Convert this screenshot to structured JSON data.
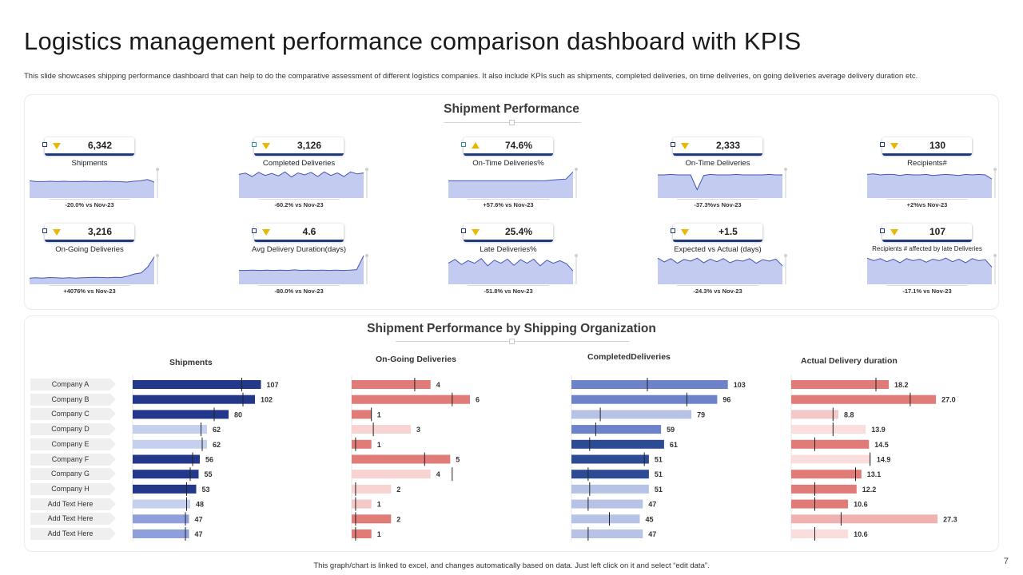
{
  "title": "Logistics management performance comparison dashboard with KPIS",
  "subtitle": "This slide showcases shipping performance dashboard that can help to do the comparative assessment of different logistics companies. It also include KPIs such as shipments, completed deliveries, on time deliveries, on going deliveries average delivery duration etc.",
  "shipment_panel": {
    "title": "Shipment Performance"
  },
  "kpis": [
    {
      "value": "6,342",
      "label": "Shipments",
      "trend": "down",
      "comparison": "-20.0% vs Nov-23",
      "spark": [
        0.55,
        0.52,
        0.52,
        0.53,
        0.52,
        0.53,
        0.52,
        0.52,
        0.53,
        0.52,
        0.52,
        0.53,
        0.52,
        0.52,
        0.5,
        0.53,
        0.55,
        0.6,
        0.5
      ]
    },
    {
      "value": "3,126",
      "label": "Completed Deliveries",
      "trend": "down",
      "comparison": "-60.2% vs Nov-23",
      "spark": [
        0.8,
        0.85,
        0.72,
        0.88,
        0.76,
        0.84,
        0.74,
        0.9,
        0.7,
        0.86,
        0.78,
        0.88,
        0.72,
        0.9,
        0.76,
        0.86,
        0.72,
        0.9,
        0.82,
        0.86
      ]
    },
    {
      "value": "74.6%",
      "label": "On-Time Deliveries%",
      "trend": "up",
      "comparison": "+57.6% vs Nov-23",
      "spark": [
        0.55,
        0.55,
        0.55,
        0.55,
        0.55,
        0.55,
        0.55,
        0.55,
        0.55,
        0.55,
        0.55,
        0.55,
        0.55,
        0.55,
        0.55,
        0.58,
        0.6,
        0.62,
        0.9
      ]
    },
    {
      "value": "2,333",
      "label": "On-Time Deliveries",
      "trend": "down",
      "comparison": "-37.3%vs Nov-23",
      "spark": [
        0.78,
        0.78,
        0.8,
        0.78,
        0.78,
        0.78,
        0.2,
        0.76,
        0.8,
        0.78,
        0.78,
        0.78,
        0.8,
        0.78,
        0.78,
        0.78,
        0.78,
        0.8,
        0.78,
        0.78
      ]
    },
    {
      "value": "130",
      "label": "Recipients#",
      "trend": "down",
      "comparison": "+2%vs Nov-23",
      "spark": [
        0.8,
        0.82,
        0.78,
        0.8,
        0.8,
        0.76,
        0.8,
        0.78,
        0.78,
        0.8,
        0.76,
        0.78,
        0.8,
        0.78,
        0.76,
        0.8,
        0.78,
        0.8,
        0.78,
        0.62
      ]
    },
    {
      "value": "3,216",
      "label": "On-Going Deliveries",
      "trend": "down",
      "comparison": "+4076% vs Nov-23",
      "spark": [
        0.12,
        0.13,
        0.12,
        0.14,
        0.13,
        0.12,
        0.13,
        0.12,
        0.13,
        0.14,
        0.15,
        0.14,
        0.13,
        0.15,
        0.14,
        0.2,
        0.28,
        0.32,
        0.55,
        0.95
      ]
    },
    {
      "value": "4.6",
      "label": "Avg Delivery Duration(days)",
      "trend": "down",
      "comparison": "-80.0% vs Nov-23",
      "spark": [
        0.42,
        0.42,
        0.43,
        0.42,
        0.43,
        0.42,
        0.43,
        0.42,
        0.44,
        0.42,
        0.43,
        0.42,
        0.43,
        0.42,
        0.43,
        0.42,
        0.43,
        0.45,
        1.0
      ]
    },
    {
      "value": "25.4%",
      "label": "Late Deliveries%",
      "trend": "down",
      "comparison": "-51.8% vs Nov-23",
      "spark": [
        0.7,
        0.85,
        0.65,
        0.8,
        0.7,
        0.88,
        0.6,
        0.82,
        0.7,
        0.86,
        0.62,
        0.84,
        0.7,
        0.86,
        0.6,
        0.82,
        0.7,
        0.8,
        0.68,
        0.4
      ]
    },
    {
      "value": "+1.5",
      "label": "Expected vs Actual (days)",
      "trend": "down",
      "comparison": "-24.3% vs Nov-23",
      "spark": [
        0.9,
        0.75,
        0.88,
        0.7,
        0.85,
        0.78,
        0.9,
        0.72,
        0.86,
        0.76,
        0.88,
        0.72,
        0.82,
        0.78,
        0.88,
        0.7,
        0.84,
        0.78,
        0.86,
        0.6
      ]
    },
    {
      "value": "107",
      "label": "Recipients # affected by late Deliveries",
      "trend": "down",
      "comparison": "-17.1% vs Nov-23",
      "spark": [
        0.9,
        0.8,
        0.88,
        0.76,
        0.86,
        0.72,
        0.88,
        0.8,
        0.86,
        0.74,
        0.86,
        0.8,
        0.9,
        0.76,
        0.86,
        0.72,
        0.88,
        0.8,
        0.84,
        0.55
      ]
    }
  ],
  "org_panel": {
    "title": "Shipment Performance by  Shipping Organization"
  },
  "companies": [
    "Company A",
    "Company B",
    "Company C",
    "Company D",
    "Company E",
    "Company F",
    "Company G",
    "Company H",
    "Add Text Here",
    "Add Text Here",
    "Add Text Here"
  ],
  "chart_data": [
    {
      "type": "bar",
      "title": "Shipments",
      "categories": [
        "Company A",
        "Company B",
        "Company C",
        "Company D",
        "Company E",
        "Company F",
        "Company G",
        "Company H",
        "Add Text Here",
        "Add Text Here",
        "Add Text Here"
      ],
      "values": [
        107,
        102,
        80,
        62,
        62,
        56,
        55,
        53,
        48,
        47,
        47
      ],
      "labels": [
        "107",
        "102",
        "80",
        "62",
        "62",
        "56",
        "55",
        "53",
        "48",
        "47",
        "47"
      ],
      "markers": [
        91,
        92,
        68,
        57,
        58,
        50,
        48,
        45,
        45,
        44,
        44
      ],
      "colors": [
        "#23388a",
        "#23388a",
        "#23388a",
        "#c5d0ef",
        "#c5d0ef",
        "#23388a",
        "#23388a",
        "#23388a",
        "#c5d0ef",
        "#8e9fdc",
        "#8e9fdc"
      ],
      "max": 110
    },
    {
      "type": "bar",
      "title": "On-Going Deliveries",
      "categories": [
        "Company A",
        "Company B",
        "Company C",
        "Company D",
        "Company E",
        "Company F",
        "Company G",
        "Company H",
        "Add Text Here",
        "Add Text Here",
        "Add Text Here"
      ],
      "values": [
        4,
        6,
        1,
        3,
        1,
        5,
        4,
        2,
        1,
        2,
        1
      ],
      "labels": [
        "4",
        "6",
        "1",
        "3",
        "1",
        "5",
        "4",
        "2",
        "1",
        "2",
        "1"
      ],
      "markers": [
        3.2,
        5.1,
        1.0,
        1.1,
        0.2,
        3.7,
        5.1,
        0.2,
        0.2,
        0.2,
        0.2
      ],
      "colors": [
        "#e07b78",
        "#e07b78",
        "#e07b78",
        "#f7d4d2",
        "#e07b78",
        "#e07b78",
        "#f7d4d2",
        "#f7d4d2",
        "#f3c8c6",
        "#e07b78",
        "#e07b78"
      ],
      "max": 7.5
    },
    {
      "type": "bar",
      "title": "CompletedDeliveries",
      "categories": [
        "Company A",
        "Company B",
        "Company C",
        "Company D",
        "Company E",
        "Company F",
        "Company G",
        "Company H",
        "Add Text Here",
        "Add Text Here",
        "Add Text Here"
      ],
      "values": [
        103,
        96,
        79,
        59,
        61,
        51,
        51,
        51,
        47,
        45,
        47
      ],
      "labels": [
        "103",
        "96",
        "79",
        "59",
        "61",
        "51",
        "51",
        "51",
        "47",
        "45",
        "47"
      ],
      "markers": [
        50,
        76,
        19,
        16,
        12,
        48,
        11,
        12,
        11,
        25,
        11
      ],
      "colors": [
        "#6c83c9",
        "#6c83c9",
        "#b7c3e6",
        "#6c83c9",
        "#2d4a94",
        "#2d4a94",
        "#2d4a94",
        "#b7c3e6",
        "#b7c3e6",
        "#b7c3e6",
        "#b7c3e6"
      ],
      "max": 120
    },
    {
      "type": "bar",
      "title": "Actual Delivery duration",
      "categories": [
        "Company A",
        "Company B",
        "Company C",
        "Company D",
        "Company E",
        "Company F",
        "Company G",
        "Company H",
        "Add Text Here",
        "Add Text Here",
        "Add Text Here"
      ],
      "values": [
        18.2,
        27.0,
        8.8,
        13.9,
        14.5,
        14.9,
        13.1,
        12.2,
        10.6,
        27.3,
        10.6
      ],
      "labels": [
        "18.2",
        "27.0",
        "8.8",
        "13.9",
        "14.5",
        "14.9",
        "13.1",
        "12.2",
        "10.6",
        "27.3",
        "10.6"
      ],
      "markers": [
        15.8,
        22.2,
        7.8,
        7.8,
        4.4,
        14.7,
        12.0,
        4.4,
        4.4,
        9.3,
        4.4
      ],
      "colors": [
        "#e07b78",
        "#e07b78",
        "#f2c9c8",
        "#f9dedd",
        "#e07b78",
        "#f9dedd",
        "#e07b78",
        "#e07b78",
        "#e07b78",
        "#efb2b1",
        "#f9dedd"
      ],
      "max": 34
    }
  ],
  "footer": "This graph/chart is linked to excel, and changes automatically based on data. Just left click on it and select “edit data”.",
  "page_number": "7"
}
